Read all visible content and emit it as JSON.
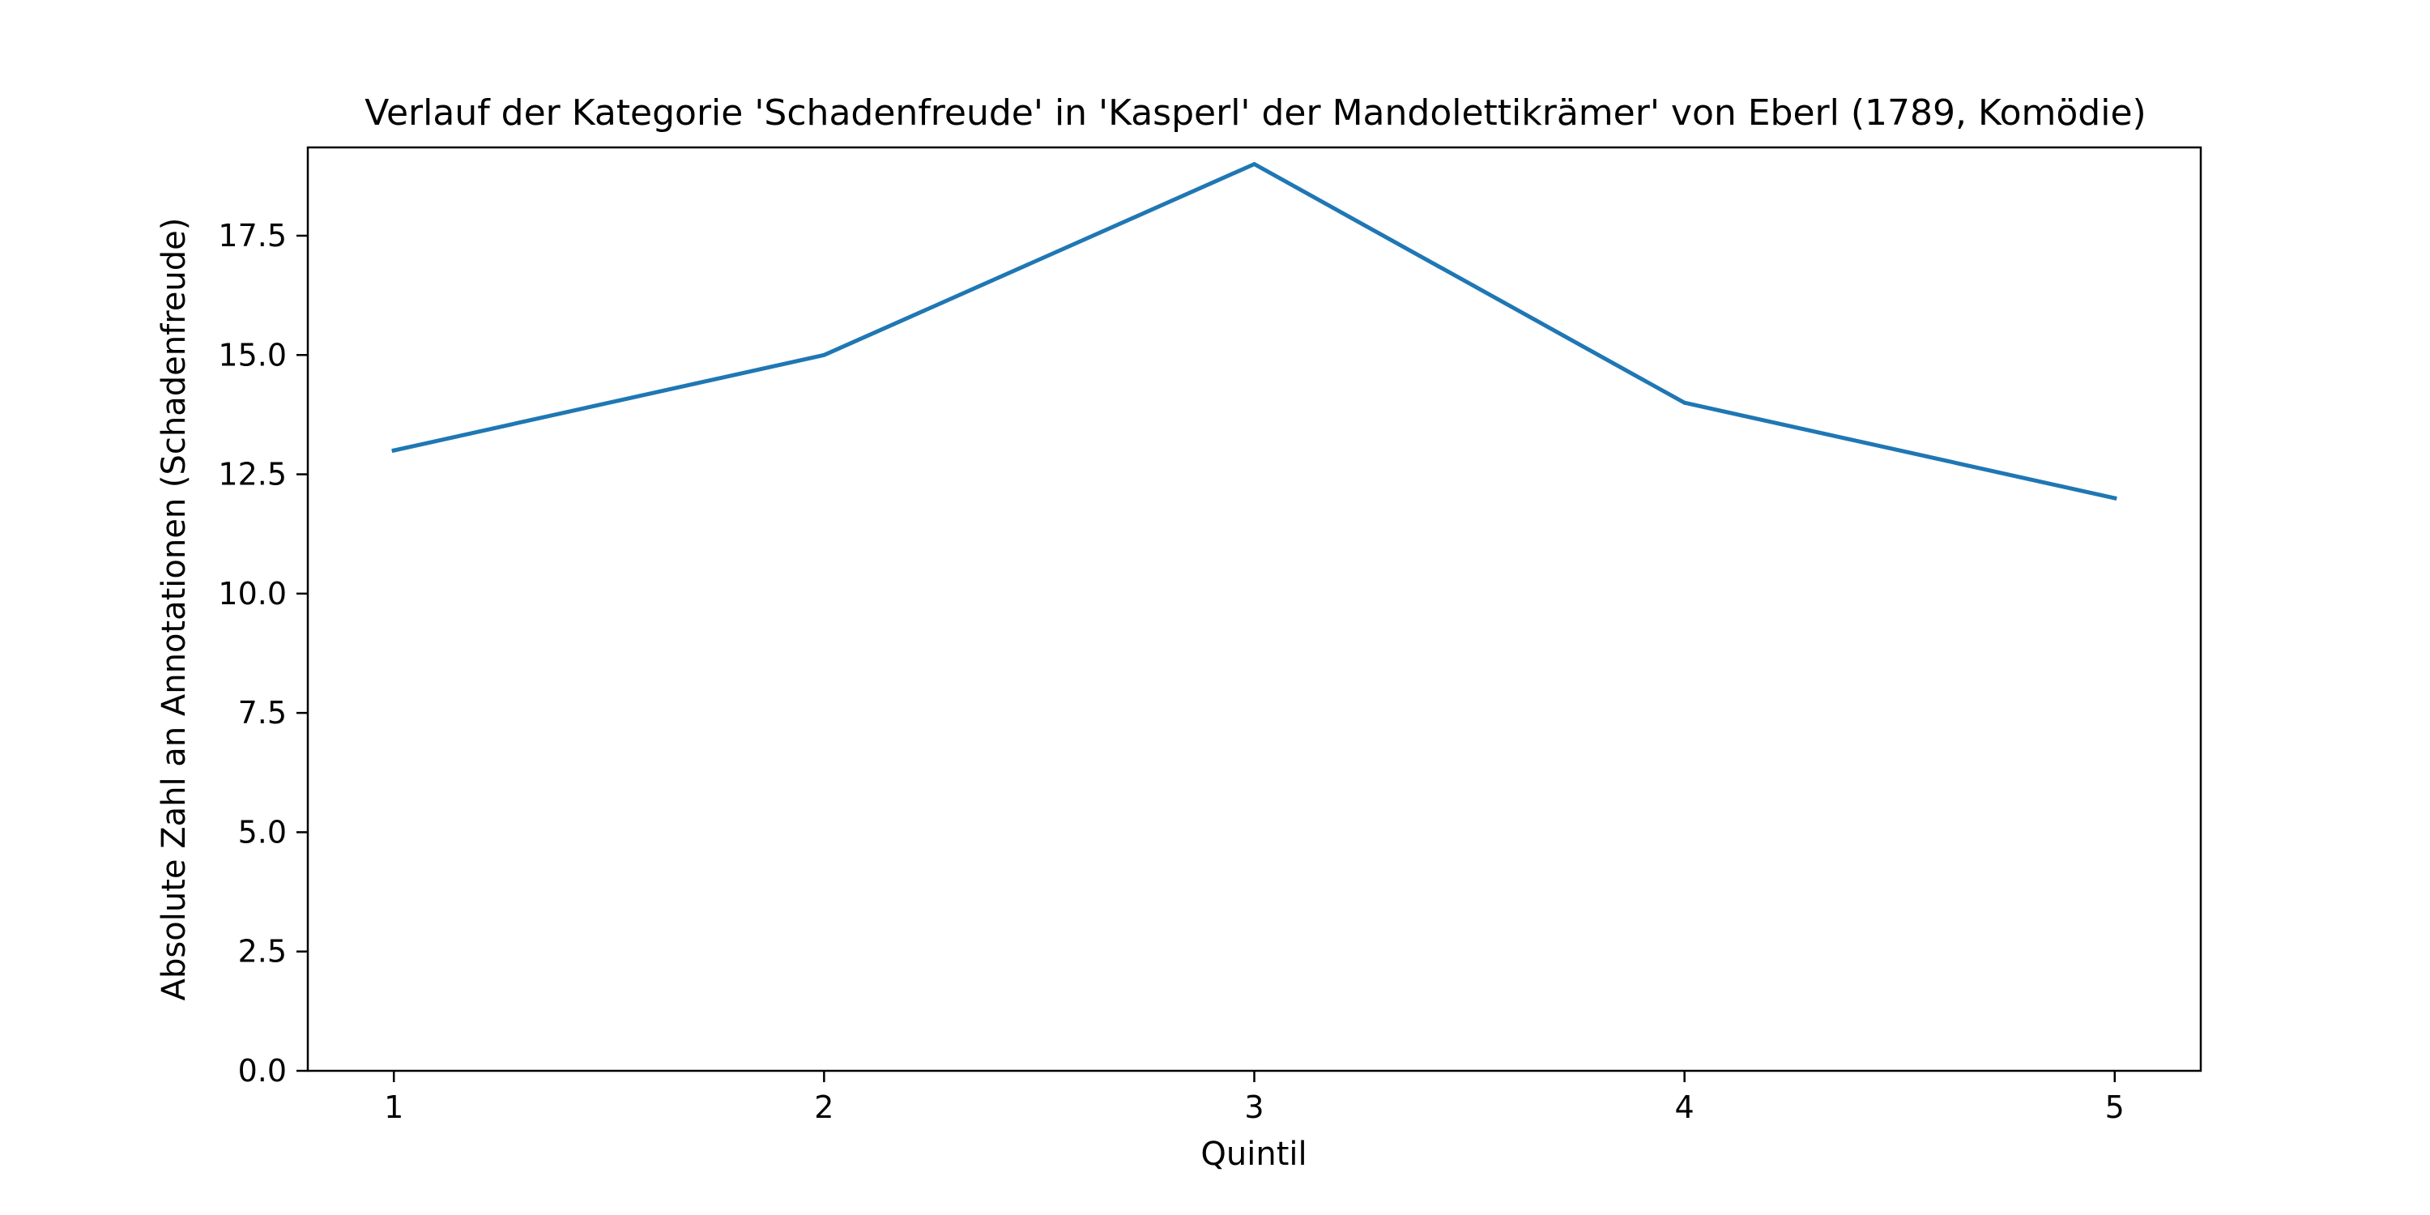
{
  "chart_data": {
    "type": "line",
    "title": "Verlauf der Kategorie 'Schadenfreude' in 'Kasperl' der Mandolettikrämer' von Eberl (1789, Komödie)",
    "xlabel": "Quintil",
    "ylabel": "Absolute Zahl an Annotationen (Schadenfreude)",
    "x": [
      1,
      2,
      3,
      4,
      5
    ],
    "x_tick_labels": [
      "1",
      "2",
      "3",
      "4",
      "5"
    ],
    "xlim": [
      0.8,
      5.2
    ],
    "y_ticks": [
      0.0,
      2.5,
      5.0,
      7.5,
      10.0,
      12.5,
      15.0,
      17.5
    ],
    "y_tick_labels": [
      "0.0",
      "2.5",
      "5.0",
      "7.5",
      "10.0",
      "12.5",
      "15.0",
      "17.5"
    ],
    "ylim": [
      0,
      19.35
    ],
    "grid": false,
    "series": [
      {
        "values": [
          13,
          15,
          19,
          14,
          12
        ],
        "color": "#1f77b4"
      }
    ]
  }
}
